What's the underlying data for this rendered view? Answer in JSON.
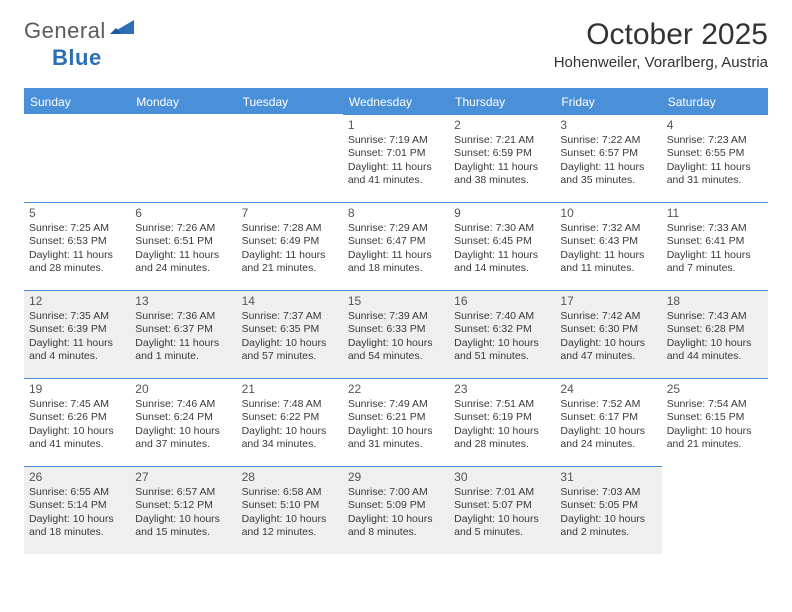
{
  "logo": {
    "text1": "General",
    "text2": "Blue"
  },
  "title": "October 2025",
  "location": "Hohenweiler, Vorarlberg, Austria",
  "colors": {
    "brand_blue": "#2d6fb7",
    "header_blue": "#4a90d9",
    "shade_bg": "#efefef",
    "text": "#3a3a3a"
  },
  "daysOfWeek": [
    "Sunday",
    "Monday",
    "Tuesday",
    "Wednesday",
    "Thursday",
    "Friday",
    "Saturday"
  ],
  "layout": {
    "first_weekday_index": 3,
    "days_in_month": 31,
    "shaded_rows": [
      2,
      4
    ]
  },
  "days": {
    "1": {
      "sr": "7:19 AM",
      "ss": "7:01 PM",
      "dl": "11 hours and 41 minutes."
    },
    "2": {
      "sr": "7:21 AM",
      "ss": "6:59 PM",
      "dl": "11 hours and 38 minutes."
    },
    "3": {
      "sr": "7:22 AM",
      "ss": "6:57 PM",
      "dl": "11 hours and 35 minutes."
    },
    "4": {
      "sr": "7:23 AM",
      "ss": "6:55 PM",
      "dl": "11 hours and 31 minutes."
    },
    "5": {
      "sr": "7:25 AM",
      "ss": "6:53 PM",
      "dl": "11 hours and 28 minutes."
    },
    "6": {
      "sr": "7:26 AM",
      "ss": "6:51 PM",
      "dl": "11 hours and 24 minutes."
    },
    "7": {
      "sr": "7:28 AM",
      "ss": "6:49 PM",
      "dl": "11 hours and 21 minutes."
    },
    "8": {
      "sr": "7:29 AM",
      "ss": "6:47 PM",
      "dl": "11 hours and 18 minutes."
    },
    "9": {
      "sr": "7:30 AM",
      "ss": "6:45 PM",
      "dl": "11 hours and 14 minutes."
    },
    "10": {
      "sr": "7:32 AM",
      "ss": "6:43 PM",
      "dl": "11 hours and 11 minutes."
    },
    "11": {
      "sr": "7:33 AM",
      "ss": "6:41 PM",
      "dl": "11 hours and 7 minutes."
    },
    "12": {
      "sr": "7:35 AM",
      "ss": "6:39 PM",
      "dl": "11 hours and 4 minutes."
    },
    "13": {
      "sr": "7:36 AM",
      "ss": "6:37 PM",
      "dl": "11 hours and 1 minute."
    },
    "14": {
      "sr": "7:37 AM",
      "ss": "6:35 PM",
      "dl": "10 hours and 57 minutes."
    },
    "15": {
      "sr": "7:39 AM",
      "ss": "6:33 PM",
      "dl": "10 hours and 54 minutes."
    },
    "16": {
      "sr": "7:40 AM",
      "ss": "6:32 PM",
      "dl": "10 hours and 51 minutes."
    },
    "17": {
      "sr": "7:42 AM",
      "ss": "6:30 PM",
      "dl": "10 hours and 47 minutes."
    },
    "18": {
      "sr": "7:43 AM",
      "ss": "6:28 PM",
      "dl": "10 hours and 44 minutes."
    },
    "19": {
      "sr": "7:45 AM",
      "ss": "6:26 PM",
      "dl": "10 hours and 41 minutes."
    },
    "20": {
      "sr": "7:46 AM",
      "ss": "6:24 PM",
      "dl": "10 hours and 37 minutes."
    },
    "21": {
      "sr": "7:48 AM",
      "ss": "6:22 PM",
      "dl": "10 hours and 34 minutes."
    },
    "22": {
      "sr": "7:49 AM",
      "ss": "6:21 PM",
      "dl": "10 hours and 31 minutes."
    },
    "23": {
      "sr": "7:51 AM",
      "ss": "6:19 PM",
      "dl": "10 hours and 28 minutes."
    },
    "24": {
      "sr": "7:52 AM",
      "ss": "6:17 PM",
      "dl": "10 hours and 24 minutes."
    },
    "25": {
      "sr": "7:54 AM",
      "ss": "6:15 PM",
      "dl": "10 hours and 21 minutes."
    },
    "26": {
      "sr": "6:55 AM",
      "ss": "5:14 PM",
      "dl": "10 hours and 18 minutes."
    },
    "27": {
      "sr": "6:57 AM",
      "ss": "5:12 PM",
      "dl": "10 hours and 15 minutes."
    },
    "28": {
      "sr": "6:58 AM",
      "ss": "5:10 PM",
      "dl": "10 hours and 12 minutes."
    },
    "29": {
      "sr": "7:00 AM",
      "ss": "5:09 PM",
      "dl": "10 hours and 8 minutes."
    },
    "30": {
      "sr": "7:01 AM",
      "ss": "5:07 PM",
      "dl": "10 hours and 5 minutes."
    },
    "31": {
      "sr": "7:03 AM",
      "ss": "5:05 PM",
      "dl": "10 hours and 2 minutes."
    }
  },
  "labels": {
    "sunrise": "Sunrise:",
    "sunset": "Sunset:",
    "daylight": "Daylight:"
  }
}
